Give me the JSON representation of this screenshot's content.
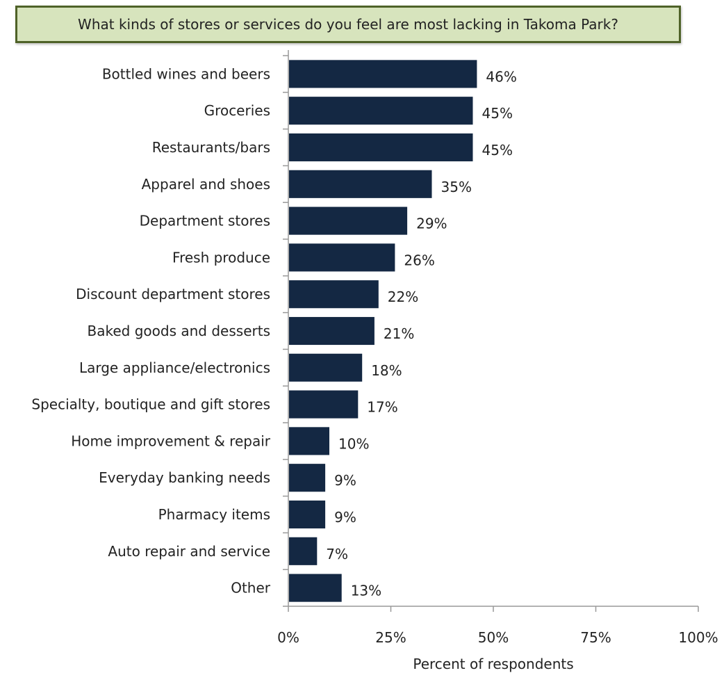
{
  "chart_data": {
    "type": "bar",
    "orientation": "horizontal",
    "title": "What kinds of stores or services do you feel are most lacking in Takoma Park?",
    "xlabel": "Percent of respondents",
    "ylabel": "",
    "categories": [
      "Bottled wines and beers",
      "Groceries",
      "Restaurants/bars",
      "Apparel and shoes",
      "Department stores",
      "Fresh produce",
      "Discount department stores",
      "Baked goods and desserts",
      "Large appliance/electronics",
      "Specialty, boutique and gift stores",
      "Home improvement & repair",
      "Everyday banking needs",
      "Pharmacy items",
      "Auto repair and service",
      "Other"
    ],
    "values": [
      46,
      45,
      45,
      35,
      29,
      26,
      22,
      21,
      18,
      17,
      10,
      9,
      9,
      7,
      13
    ],
    "value_labels": [
      "46%",
      "45%",
      "45%",
      "35%",
      "29%",
      "26%",
      "22%",
      "21%",
      "18%",
      "17%",
      "10%",
      "9%",
      "9%",
      "7%",
      "13%"
    ],
    "xlim": [
      0,
      100
    ],
    "x_ticks": [
      0,
      25,
      50,
      75,
      100
    ],
    "x_tick_labels": [
      "0%",
      "25%",
      "50%",
      "75%",
      "100%"
    ],
    "grid": false,
    "legend": "none",
    "colors": {
      "bar": "#142843",
      "title_fill": "#d7e4bd",
      "title_border": "#4f6228",
      "axis": "#999999"
    }
  }
}
